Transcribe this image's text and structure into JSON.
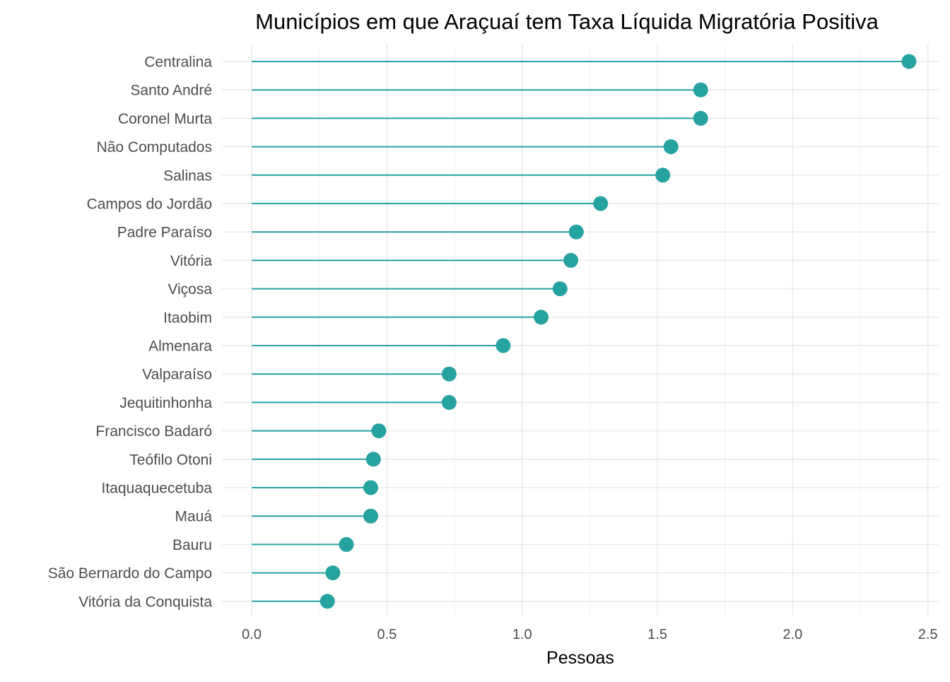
{
  "chart_data": {
    "type": "lollipop",
    "title": "Municípios em que Araçuaí tem Taxa Líquida Migratória Positiva",
    "xlabel": "Pessoas",
    "ylabel": "",
    "xlim": [
      -0.11,
      2.54
    ],
    "x_ticks": [
      0.0,
      0.5,
      1.0,
      1.5,
      2.0,
      2.5
    ],
    "x_tick_labels": [
      "0.0",
      "0.5",
      "1.0",
      "1.5",
      "2.0",
      "2.5"
    ],
    "grid": true,
    "legend": "none",
    "color": "#26a2a0",
    "categories": [
      "Centralina",
      "Santo André",
      "Coronel Murta",
      "Não Computados",
      "Salinas",
      "Campos do Jordão",
      "Padre Paraíso",
      "Vitória",
      "Viçosa",
      "Itaobim",
      "Almenara",
      "Valparaíso",
      "Jequitinhonha",
      "Francisco Badaró",
      "Teófilo Otoni",
      "Itaquaquecetuba",
      "Mauá",
      "Bauru",
      "São Bernardo do Campo",
      "Vitória da Conquista"
    ],
    "values": [
      2.43,
      1.66,
      1.66,
      1.55,
      1.52,
      1.29,
      1.2,
      1.18,
      1.14,
      1.07,
      0.93,
      0.73,
      0.73,
      0.47,
      0.45,
      0.44,
      0.44,
      0.35,
      0.3,
      0.28
    ]
  }
}
